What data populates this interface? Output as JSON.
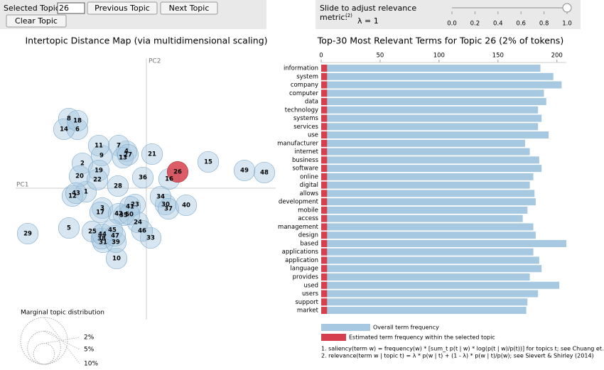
{
  "controls": {
    "selected_topic_label": "Selected Topic:",
    "selected_topic_value": "26",
    "previous": "Previous Topic",
    "next": "Next Topic",
    "clear": "Clear Topic",
    "slider": {
      "label": "Slide to adjust relevance",
      "label_2": "metric:",
      "superscript": "(2)",
      "value_label": "λ = 1",
      "value": 1,
      "lim": [
        0,
        1
      ],
      "ticks": [
        {
          "value": 0,
          "label": "0.0"
        },
        0.2,
        0.4,
        0.6,
        0.8,
        {
          "value": 1,
          "label": "1.0"
        }
      ]
    }
  },
  "chart_data": [
    {
      "type": "scatter",
      "title": "Intertopic Distance Map (via multidimensional scaling)",
      "x_label": "PC1",
      "y_label": "PC2",
      "color": "#a6c8e0",
      "selected_color": "#d6404e",
      "labels": [
        "1",
        "2",
        "3",
        "4",
        "5",
        "6",
        "7",
        "8",
        "9",
        "10",
        "11",
        "12",
        "13",
        "14",
        "15",
        "16",
        "17",
        "18",
        "19",
        "20",
        "21",
        "22",
        "23",
        "24",
        "25",
        "26",
        "27",
        "28",
        "29",
        "30",
        "31",
        "33",
        "34",
        "35",
        "36",
        "37",
        "38",
        "39",
        "40",
        "41",
        "42",
        "43",
        "44",
        "45",
        "46",
        "47",
        "48",
        "49",
        "50"
      ],
      "x": [
        -85,
        -90,
        -62,
        -28,
        -109,
        -97,
        -39,
        -109,
        -63,
        -42,
        -67,
        -104,
        -33,
        -116,
        87,
        32,
        -65,
        -97,
        -67,
        -94,
        8,
        -69,
        -16,
        -12,
        -76,
        44,
        -26,
        -40,
        -167,
        27,
        -61,
        6,
        20,
        -32,
        -5,
        31,
        -63,
        -43,
        56,
        -23,
        -39,
        -99,
        -62,
        -48,
        -6,
        -44,
        166,
        138,
        -24
      ],
      "values": [
        -5,
        35,
        -28,
        52,
        -56,
        83,
        60,
        98,
        46,
        -99,
        60,
        -11,
        43,
        83,
        37,
        13,
        -34,
        95,
        25,
        17,
        48,
        12,
        -23,
        -48,
        -61,
        23,
        47,
        3,
        -64,
        -23,
        -76,
        -70,
        -12,
        -38,
        15,
        -29,
        -71,
        -76,
        -24,
        -26,
        -36,
        -7,
        -65,
        -59,
        -60,
        -67,
        22,
        25,
        -37
      ],
      "sizes": [
        2,
        2,
        2,
        2,
        2,
        2,
        2,
        2,
        2,
        2,
        2,
        2,
        2,
        2,
        2,
        2,
        2,
        2,
        2,
        2,
        2,
        2,
        2,
        2,
        2,
        2,
        2,
        2,
        2,
        2,
        2,
        2,
        2,
        2,
        2,
        2,
        2,
        2,
        2,
        2,
        2,
        2,
        2,
        2,
        2,
        2,
        2,
        2,
        2
      ],
      "xlim": [
        -184,
        182
      ],
      "ylim": [
        -185,
        180
      ],
      "size_legend": {
        "title": "Marginal topic distribution",
        "sizes": [
          {
            "value": 2,
            "label": "2%"
          },
          {
            "value": 5,
            "label": "5%"
          },
          {
            "value": 10,
            "label": "10%"
          }
        ]
      }
    },
    {
      "type": "bar",
      "orientation": "horizontal",
      "title": "Top-30 Most Relevant Terms for Topic 26 (2% of tokens)",
      "categories": [
        "information",
        "system",
        "company",
        "computer",
        "data",
        "technology",
        "systems",
        "services",
        "use",
        "manufacturer",
        "internet",
        "business",
        "software",
        "online",
        "digital",
        "allows",
        "development",
        "mobile",
        "access",
        "management",
        "design",
        "based",
        "applications",
        "application",
        "language",
        "provides",
        "used",
        "users",
        "support",
        "market"
      ],
      "series": [
        {
          "name": "Overall term frequency",
          "color": "#a6c8e0",
          "values": [
            186,
            197,
            204,
            189,
            191,
            184,
            187,
            184,
            193,
            173,
            177,
            185,
            187,
            180,
            177,
            181,
            182,
            175,
            171,
            180,
            182,
            208,
            180,
            185,
            187,
            177,
            202,
            184,
            175,
            174
          ]
        },
        {
          "name": "Estimated term frequency within the selected topic",
          "color": "#d6404e",
          "values": [
            5,
            5,
            5,
            5,
            5,
            5,
            5,
            5,
            5,
            5,
            5,
            5,
            5,
            5,
            5,
            5,
            5,
            5,
            5,
            5,
            5,
            5,
            5,
            5,
            5,
            5,
            5,
            5,
            5,
            5
          ]
        }
      ],
      "xlim": [
        0,
        208
      ],
      "xticks": [
        0,
        50,
        100,
        150,
        200
      ],
      "legend": "bottom"
    }
  ],
  "footnotes": [
    "1. saliency(term w) = frequency(w) * [sum_t p(t | w) * log(p(t | w)/p(t))] for topics t; see Chuang et. al",
    "2. relevance(term w | topic t) = λ * p(w | t) + (1 - λ) * p(w | t)/p(w); see Sievert & Shirley (2014)"
  ]
}
